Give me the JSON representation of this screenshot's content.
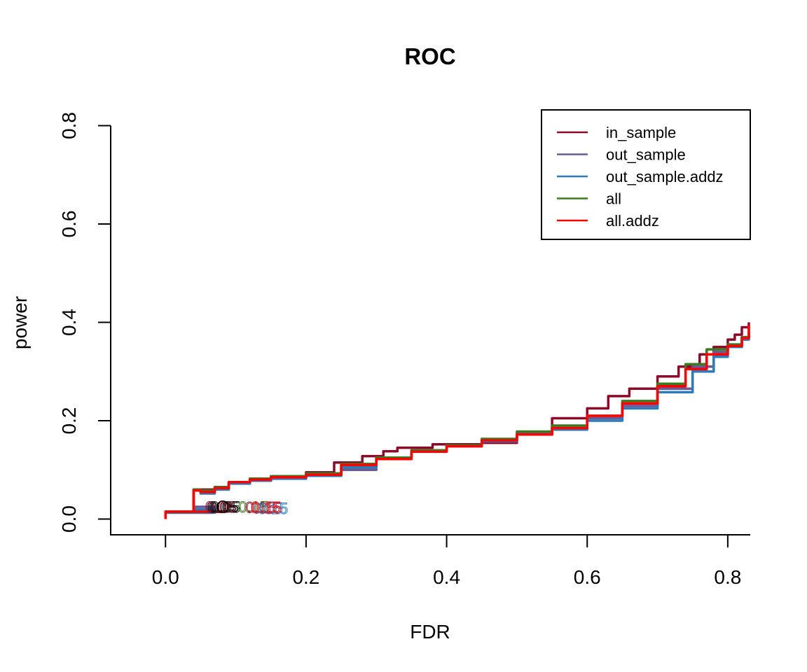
{
  "chart_data": {
    "type": "line",
    "title": "ROC",
    "xlabel": "FDR",
    "ylabel": "power",
    "xlim": [
      -0.078,
      0.832
    ],
    "ylim": [
      -0.032,
      0.832
    ],
    "x_ticks": [
      "0.0",
      "0.2",
      "0.4",
      "0.6",
      "0.8"
    ],
    "y_ticks": [
      "0.0",
      "0.2",
      "0.4",
      "0.6",
      "0.8"
    ],
    "grid": false,
    "legend_position": "top-right",
    "series": [
      {
        "name": "in_sample",
        "color": "#8B0A28",
        "x": [
          0.0,
          0.0,
          0.085,
          0.04,
          0.05,
          0.07,
          0.09,
          0.12,
          0.15,
          0.2,
          0.24,
          0.28,
          0.31,
          0.33,
          0.38,
          0.45,
          0.5,
          0.55,
          0.6,
          0.63,
          0.66,
          0.7,
          0.73,
          0.76,
          0.78,
          0.8,
          0.81,
          0.82,
          0.83
        ],
        "y": [
          0.0,
          0.015,
          0.015,
          0.06,
          0.06,
          0.065,
          0.075,
          0.082,
          0.087,
          0.095,
          0.115,
          0.128,
          0.138,
          0.145,
          0.152,
          0.155,
          0.172,
          0.205,
          0.225,
          0.25,
          0.265,
          0.29,
          0.31,
          0.335,
          0.35,
          0.365,
          0.375,
          0.39,
          0.4
        ]
      },
      {
        "name": "out_sample",
        "color": "#6B5A95",
        "x": [
          0.0,
          0.0,
          0.07,
          0.04,
          0.05,
          0.07,
          0.09,
          0.12,
          0.15,
          0.2,
          0.25,
          0.3,
          0.35,
          0.4,
          0.45,
          0.5,
          0.55,
          0.6,
          0.65,
          0.7,
          0.75,
          0.78,
          0.8,
          0.82,
          0.83
        ],
        "y": [
          0.0,
          0.013,
          0.025,
          0.058,
          0.055,
          0.062,
          0.073,
          0.078,
          0.083,
          0.09,
          0.1,
          0.125,
          0.14,
          0.148,
          0.16,
          0.175,
          0.185,
          0.205,
          0.23,
          0.265,
          0.31,
          0.34,
          0.355,
          0.37,
          0.38
        ]
      },
      {
        "name": "out_sample.addz",
        "color": "#2E7BB8",
        "x": [
          0.0,
          0.0,
          0.07,
          0.04,
          0.05,
          0.07,
          0.09,
          0.12,
          0.15,
          0.2,
          0.25,
          0.3,
          0.35,
          0.4,
          0.45,
          0.5,
          0.55,
          0.6,
          0.65,
          0.7,
          0.75,
          0.78,
          0.8,
          0.82,
          0.83
        ],
        "y": [
          0.0,
          0.013,
          0.02,
          0.058,
          0.052,
          0.06,
          0.072,
          0.078,
          0.082,
          0.088,
          0.105,
          0.125,
          0.138,
          0.148,
          0.158,
          0.172,
          0.182,
          0.2,
          0.225,
          0.258,
          0.3,
          0.33,
          0.35,
          0.365,
          0.38
        ]
      },
      {
        "name": "all",
        "color": "#3A7A20",
        "x": [
          0.0,
          0.0,
          0.085,
          0.04,
          0.05,
          0.07,
          0.09,
          0.12,
          0.15,
          0.2,
          0.25,
          0.3,
          0.35,
          0.4,
          0.45,
          0.5,
          0.55,
          0.6,
          0.65,
          0.7,
          0.74,
          0.77,
          0.8,
          0.82,
          0.83
        ],
        "y": [
          0.0,
          0.015,
          0.015,
          0.06,
          0.058,
          0.065,
          0.075,
          0.082,
          0.087,
          0.093,
          0.112,
          0.125,
          0.14,
          0.15,
          0.163,
          0.178,
          0.19,
          0.21,
          0.24,
          0.275,
          0.315,
          0.345,
          0.355,
          0.37,
          0.39
        ]
      },
      {
        "name": "all.addz",
        "color": "#FF0000",
        "x": [
          0.0,
          0.0,
          0.085,
          0.04,
          0.05,
          0.07,
          0.09,
          0.12,
          0.15,
          0.2,
          0.25,
          0.3,
          0.35,
          0.4,
          0.45,
          0.5,
          0.55,
          0.6,
          0.65,
          0.7,
          0.74,
          0.77,
          0.8,
          0.82,
          0.83
        ],
        "y": [
          0.0,
          0.015,
          0.015,
          0.058,
          0.055,
          0.063,
          0.075,
          0.08,
          0.085,
          0.09,
          0.11,
          0.122,
          0.137,
          0.148,
          0.16,
          0.172,
          0.185,
          0.21,
          0.235,
          0.27,
          0.305,
          0.335,
          0.352,
          0.368,
          0.395
        ]
      }
    ],
    "annotations": [
      {
        "text": "0.05",
        "x": 0.0815,
        "y": 0.025,
        "color": "#000000",
        "marker": "circle"
      },
      {
        "text": "0.05",
        "x": 0.078,
        "y": 0.025,
        "color": "#8B0A28"
      },
      {
        "text": "0.05",
        "x": 0.085,
        "y": 0.025,
        "color": "#000000"
      },
      {
        "text": "0.15",
        "x": 0.125,
        "y": 0.025,
        "color": "#3A7A20"
      },
      {
        "text": "0.15",
        "x": 0.135,
        "y": 0.024,
        "color": "#8B0A28"
      },
      {
        "text": "0.15",
        "x": 0.145,
        "y": 0.023,
        "color": "#6B5A95"
      },
      {
        "text": "0.15",
        "x": 0.153,
        "y": 0.022,
        "color": "#2E7BB8"
      },
      {
        "text": "0.15",
        "x": 0.143,
        "y": 0.024,
        "color": "#FF0000"
      }
    ]
  }
}
